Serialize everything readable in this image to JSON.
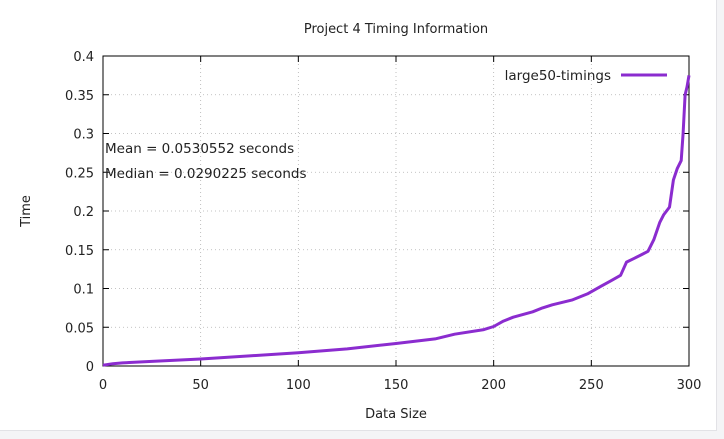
{
  "chart_data": {
    "type": "line",
    "title": "Project 4 Timing Information",
    "xlabel": "Data Size",
    "ylabel": "Time",
    "xlim": [
      0,
      300
    ],
    "ylim": [
      0,
      0.4
    ],
    "xticks": [
      0,
      50,
      100,
      150,
      200,
      250,
      300
    ],
    "yticks": [
      0,
      0.05,
      0.1,
      0.15,
      0.2,
      0.25,
      0.3,
      0.35,
      0.4
    ],
    "xtick_labels": [
      "0",
      "50",
      "100",
      "150",
      "200",
      "250",
      "300"
    ],
    "ytick_labels": [
      "0",
      "0.05",
      "0.1",
      "0.15",
      "0.2",
      "0.25",
      "0.3",
      "0.35",
      "0.4"
    ],
    "grid": true,
    "legend_position": "top-right",
    "annotations": [
      "Mean = 0.0530552 seconds",
      "Median = 0.0290225 seconds"
    ],
    "series": [
      {
        "name": "large50-timings",
        "color": "#8b2ccf",
        "x": [
          0,
          5,
          10,
          25,
          50,
          75,
          100,
          125,
          150,
          170,
          180,
          195,
          200,
          205,
          210,
          220,
          225,
          230,
          240,
          248,
          255,
          260,
          265,
          268,
          272,
          276,
          279,
          282,
          285,
          287,
          290,
          292,
          294,
          296,
          297,
          298,
          299,
          300
        ],
        "y": [
          0.001,
          0.003,
          0.004,
          0.006,
          0.009,
          0.013,
          0.017,
          0.022,
          0.029,
          0.035,
          0.041,
          0.047,
          0.051,
          0.058,
          0.063,
          0.07,
          0.075,
          0.079,
          0.085,
          0.093,
          0.103,
          0.11,
          0.117,
          0.134,
          0.139,
          0.144,
          0.148,
          0.163,
          0.185,
          0.195,
          0.205,
          0.24,
          0.255,
          0.265,
          0.3,
          0.35,
          0.36,
          0.375
        ]
      }
    ]
  }
}
